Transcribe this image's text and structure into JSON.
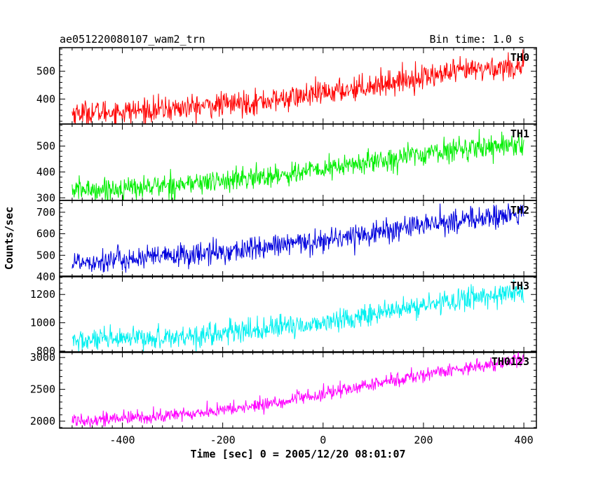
{
  "header": {
    "title": "ae051220080107_wam2_trn",
    "bin_time": "Bin time: 1.0 s"
  },
  "xlabel": "Time [sec] 0 = 2005/12/20 08:01:07",
  "ylabel": "Counts/sec",
  "x_ticks": [
    -400,
    -200,
    0,
    200,
    400
  ],
  "colors": {
    "TH0": "#ff0000",
    "TH1": "#00ee00",
    "TH2": "#0000dd",
    "TH3": "#00f0f0",
    "TH0123": "#ff00ff",
    "axes": "#000000"
  },
  "chart_data": {
    "type": "line",
    "title": "ae051220080107_wam2_trn",
    "subtitle": "Bin time: 1.0 s",
    "xlabel": "Time [sec] 0 = 2005/12/20 08:01:07",
    "ylabel": "Counts/sec",
    "xlim": [
      -525,
      425
    ],
    "x_range_data": [
      -500,
      400
    ],
    "bin_time_s": 1.0,
    "grid": false,
    "layout": "5 vertically stacked panels sharing the time axis",
    "panels": [
      {
        "name": "TH0",
        "color": "#ff0000",
        "ylim": [
          310,
          585
        ],
        "yticks": [
          400,
          500
        ],
        "trend": {
          "x": [
            -500,
            -400,
            -300,
            -200,
            -100,
            0,
            100,
            200,
            300,
            400
          ],
          "y": [
            350,
            355,
            365,
            380,
            395,
            420,
            450,
            480,
            505,
            520
          ]
        },
        "noise_sd": 22
      },
      {
        "name": "TH1",
        "color": "#00ee00",
        "ylim": [
          290,
          585
        ],
        "yticks": [
          300,
          400,
          500
        ],
        "trend": {
          "x": [
            -500,
            -400,
            -300,
            -200,
            -100,
            0,
            100,
            200,
            300,
            400
          ],
          "y": [
            330,
            335,
            350,
            365,
            385,
            410,
            440,
            470,
            495,
            510
          ]
        },
        "noise_sd": 22
      },
      {
        "name": "TH2",
        "color": "#0000dd",
        "ylim": [
          400,
          755
        ],
        "yticks": [
          400,
          500,
          600,
          700
        ],
        "trend": {
          "x": [
            -500,
            -400,
            -300,
            -200,
            -100,
            0,
            100,
            200,
            300,
            400
          ],
          "y": [
            470,
            480,
            495,
            515,
            540,
            570,
            605,
            640,
            670,
            690
          ]
        },
        "noise_sd": 28
      },
      {
        "name": "TH3",
        "color": "#00f0f0",
        "ylim": [
          790,
          1330
        ],
        "yticks": [
          800,
          1000,
          1200
        ],
        "trend": {
          "x": [
            -500,
            -400,
            -300,
            -200,
            -100,
            0,
            100,
            200,
            300,
            400
          ],
          "y": [
            870,
            880,
            900,
            925,
            960,
            1000,
            1060,
            1120,
            1180,
            1220
          ]
        },
        "noise_sd": 40
      },
      {
        "name": "TH0123",
        "color": "#ff00ff",
        "ylim": [
          1890,
          3090
        ],
        "yticks": [
          2000,
          2500,
          3000
        ],
        "trend": {
          "x": [
            -500,
            -400,
            -300,
            -200,
            -100,
            0,
            100,
            200,
            300,
            400
          ],
          "y": [
            2020,
            2040,
            2090,
            2170,
            2280,
            2420,
            2580,
            2730,
            2860,
            2960
          ]
        },
        "noise_sd": 55
      }
    ]
  }
}
